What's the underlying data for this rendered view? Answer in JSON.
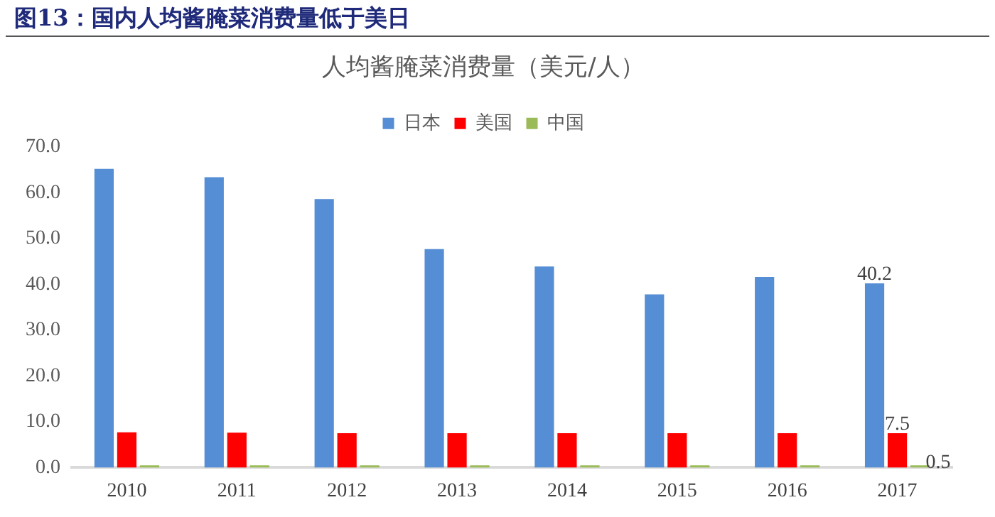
{
  "chart_data": {
    "type": "bar",
    "title": "图13：国内人均酱腌菜消费量低于美日",
    "subtitle": "人均酱腌菜消费量（美元/人）",
    "categories": [
      "2010",
      "2011",
      "2012",
      "2013",
      "2014",
      "2015",
      "2016",
      "2017"
    ],
    "series": [
      {
        "name": "日本",
        "color": "#558ed5",
        "values": [
          65.2,
          63.4,
          58.6,
          47.7,
          43.9,
          37.8,
          41.6,
          40.2
        ],
        "value_labels": [
          null,
          null,
          null,
          null,
          null,
          null,
          null,
          "40.2"
        ]
      },
      {
        "name": "美国",
        "color": "#ff0000",
        "values": [
          7.7,
          7.6,
          7.5,
          7.5,
          7.5,
          7.5,
          7.5,
          7.5
        ],
        "value_labels": [
          null,
          null,
          null,
          null,
          null,
          null,
          null,
          "7.5"
        ]
      },
      {
        "name": "中国",
        "color": "#9bbb59",
        "values": [
          0.5,
          0.5,
          0.5,
          0.5,
          0.5,
          0.5,
          0.5,
          0.5
        ],
        "value_labels": [
          null,
          null,
          null,
          null,
          null,
          null,
          null,
          "0.5"
        ]
      }
    ],
    "ylim": [
      0,
      70
    ],
    "yticks": [
      {
        "value": 0,
        "label": "0.0"
      },
      {
        "value": 10,
        "label": "10.0"
      },
      {
        "value": 20,
        "label": "20.0"
      },
      {
        "value": 30,
        "label": "30.0"
      },
      {
        "value": 40,
        "label": "40.0"
      },
      {
        "value": 50,
        "label": "50.0"
      },
      {
        "value": 60,
        "label": "60.0"
      },
      {
        "value": 70,
        "label": "70.0"
      }
    ],
    "grid": false,
    "legend": "top"
  }
}
